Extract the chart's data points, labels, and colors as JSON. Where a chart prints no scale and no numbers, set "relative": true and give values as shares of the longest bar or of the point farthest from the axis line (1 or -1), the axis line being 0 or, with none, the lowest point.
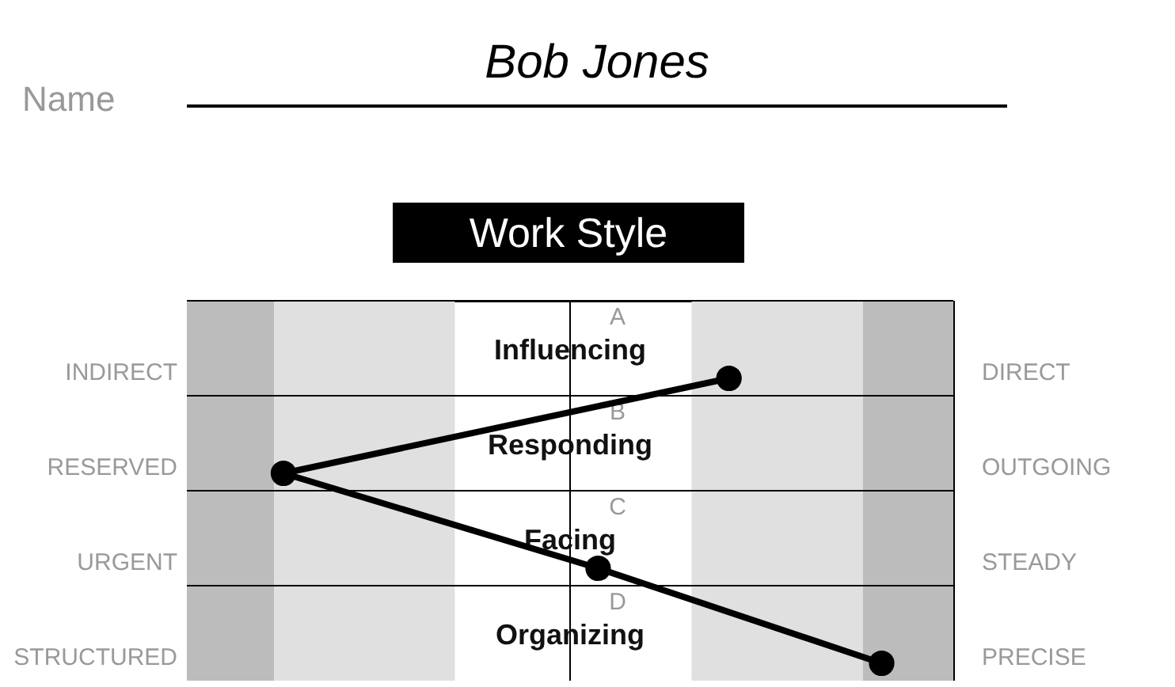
{
  "chart_data": {
    "type": "line",
    "orientation": "horizontal",
    "relative": true,
    "title": "Work Style",
    "categories": [
      "Influencing",
      "Responding",
      "Facing",
      "Organizing"
    ],
    "values": [
      0.51,
      -0.92,
      0.09,
      1.0
    ],
    "color": "#000000",
    "marker": "circle",
    "grid": "y",
    "bands": [
      {
        "axis": "x",
        "from": -1.23,
        "to": -0.95,
        "color": "#bcbcbc"
      },
      {
        "axis": "x",
        "from": -0.95,
        "to": -0.37,
        "color": "#e0e0e1"
      },
      {
        "axis": "x",
        "from": 0.39,
        "to": 0.94,
        "color": "#e0e0e1"
      },
      {
        "axis": "x",
        "from": 0.94,
        "to": 1.23,
        "color": "#bcbcbc"
      }
    ],
    "annotations": [
      "Name",
      "Bob Jones",
      "A",
      "B",
      "C",
      "D",
      "INDIRECT",
      "RESERVED",
      "URGENT",
      "STRUCTURED",
      "DIRECT",
      "OUTGOING",
      "STEADY",
      "PRECISE"
    ]
  }
}
